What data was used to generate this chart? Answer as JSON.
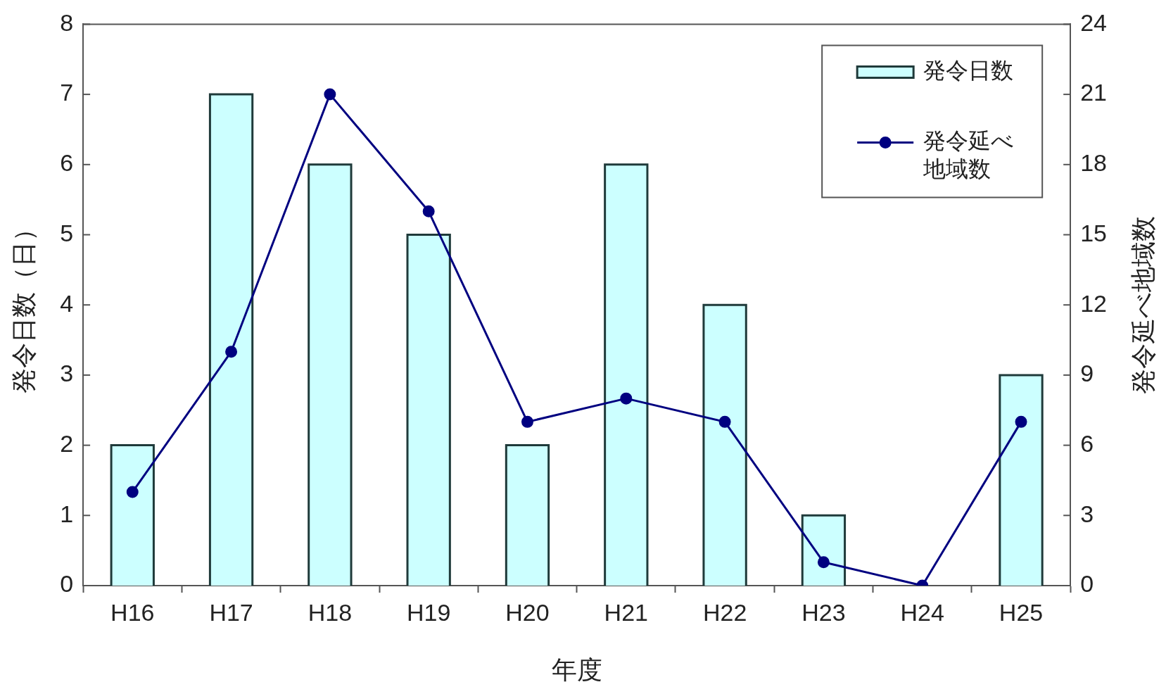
{
  "chart_data": {
    "type": "bar",
    "xlabel": "年度",
    "ylabel": "発令日数（日）",
    "y2label": "発令延べ地域数",
    "categories": [
      "H16",
      "H17",
      "H18",
      "H19",
      "H20",
      "H21",
      "H22",
      "H23",
      "H24",
      "H25"
    ],
    "series": [
      {
        "name": "発令日数",
        "color": "#ccffff",
        "values": [
          2,
          7,
          6,
          5,
          2,
          6,
          4,
          1,
          0,
          3
        ]
      },
      {
        "name": "発令延べ地域数",
        "type": "line",
        "axis": "y2",
        "color": "#000080",
        "values": [
          4,
          10,
          21,
          16,
          7,
          8,
          7,
          1,
          0,
          7
        ]
      }
    ],
    "ylim": [
      0,
      8
    ],
    "yticks": [
      0,
      1,
      2,
      3,
      4,
      5,
      6,
      7,
      8
    ],
    "y2lim": [
      0,
      24
    ],
    "y2ticks": [
      0,
      3,
      6,
      9,
      12,
      15,
      18,
      21,
      24
    ],
    "legend": "top right",
    "marker": "circle"
  }
}
